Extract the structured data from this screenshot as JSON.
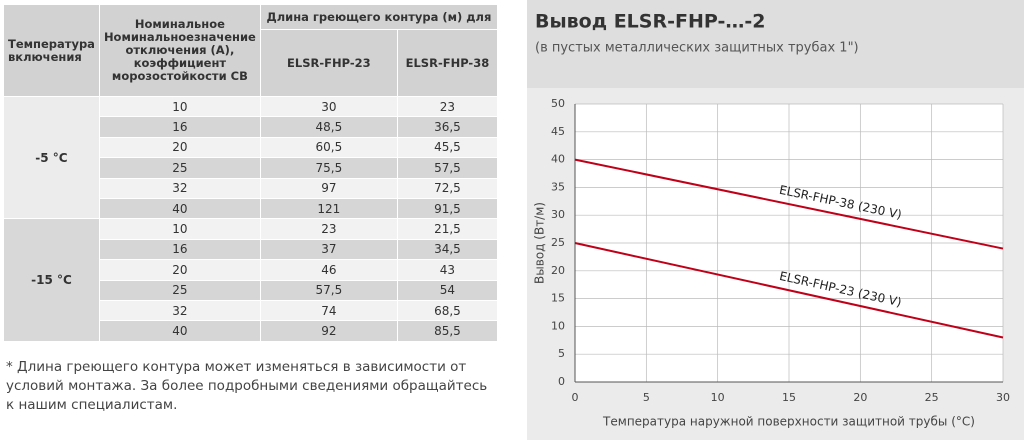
{
  "table": {
    "header": {
      "temp": "Температура включения",
      "nominal": "Номинальное Номинальноезначение отключения (А), коэффициент морозостойкости СВ",
      "group": "Длина греющего контура (м) для",
      "col23": "ELSR-FHP-23",
      "col38": "ELSR-FHP-38"
    },
    "groups": [
      {
        "label": "-5 °C",
        "rows": [
          [
            "10",
            "30",
            "23"
          ],
          [
            "16",
            "48,5",
            "36,5"
          ],
          [
            "20",
            "60,5",
            "45,5"
          ],
          [
            "25",
            "75,5",
            "57,5"
          ],
          [
            "32",
            "97",
            "72,5"
          ],
          [
            "40",
            "121",
            "91,5"
          ]
        ]
      },
      {
        "label": "-15 °C",
        "rows": [
          [
            "10",
            "23",
            "21,5"
          ],
          [
            "16",
            "37",
            "34,5"
          ],
          [
            "20",
            "46",
            "43"
          ],
          [
            "25",
            "57,5",
            "54"
          ],
          [
            "32",
            "74",
            "68,5"
          ],
          [
            "40",
            "92",
            "85,5"
          ]
        ]
      }
    ]
  },
  "footnote": "* Длина греющего контура может изменяться в зависимости от условий монтажа. За более подробными сведениями обращайтесь к нашим специалистам.",
  "chart_data": {
    "type": "line",
    "title": "Вывод ELSR-FHP-…-2",
    "subtitle": "(в пустых металлических защитных трубах 1\")",
    "x_label": "Температура наружной поверхности защитной трубы (°C)",
    "y_label": "Вывод (Вт/м)",
    "x": [
      0,
      30
    ],
    "series": [
      {
        "name": "ELSR-FHP-38 (230 V)",
        "color": "#c00018",
        "values": [
          40,
          24
        ]
      },
      {
        "name": "ELSR-FHP-23 (230 V)",
        "color": "#c00018",
        "values": [
          25,
          8
        ]
      }
    ],
    "xlim": [
      0,
      30
    ],
    "xticks": [
      0,
      5,
      10,
      15,
      20,
      25,
      30
    ],
    "ylim": [
      0,
      50
    ],
    "yticks": [
      0,
      5,
      10,
      15,
      20,
      25,
      30,
      35,
      40,
      45,
      50
    ],
    "grid": true
  }
}
